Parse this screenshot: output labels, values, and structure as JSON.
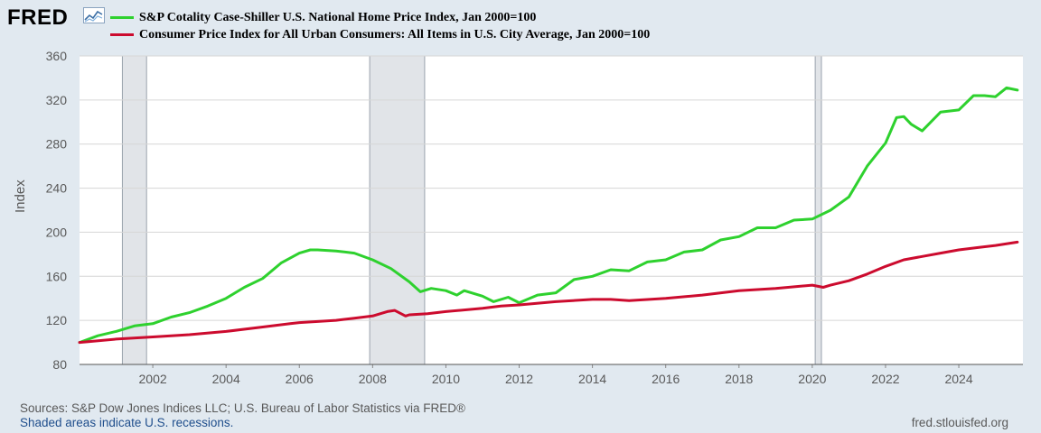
{
  "header": {
    "logo_text": "FRED",
    "logo_icon": "trend-line-icon"
  },
  "footer": {
    "sources": "Sources: S&P Dow Jones Indices LLC; U.S. Bureau of Labor Statistics via FRED®",
    "recession_note": "Shaded areas indicate U.S. recessions.",
    "site": "fred.stlouisfed.org"
  },
  "colors": {
    "background": "#e1e9f0",
    "plot_area": "#ffffff",
    "recession": "#e1e4e8",
    "home_price": "#2ed12e",
    "cpi": "#cc0b2e"
  },
  "chart_data": {
    "type": "line",
    "ylabel": "Index",
    "xlabel": "",
    "ylim": [
      80,
      360
    ],
    "xlim": [
      2000.0,
      2025.75
    ],
    "yticks": [
      80,
      120,
      160,
      200,
      240,
      280,
      320,
      360
    ],
    "xticks": [
      2002,
      2004,
      2006,
      2008,
      2010,
      2012,
      2014,
      2016,
      2018,
      2020,
      2022,
      2024
    ],
    "grid": true,
    "legend_position": "top-left",
    "recessions": [
      [
        2001.17,
        2001.83
      ],
      [
        2007.92,
        2009.42
      ],
      [
        2020.08,
        2020.25
      ]
    ],
    "series": [
      {
        "name": "S&P Cotality Case-Shiller U.S. National Home Price Index, Jan 2000=100",
        "color": "#2ed12e",
        "x": [
          2000.0,
          2000.5,
          2001.0,
          2001.5,
          2002.0,
          2002.5,
          2003.0,
          2003.5,
          2004.0,
          2004.5,
          2005.0,
          2005.5,
          2006.0,
          2006.3,
          2006.5,
          2007.0,
          2007.5,
          2008.0,
          2008.5,
          2009.0,
          2009.3,
          2009.6,
          2010.0,
          2010.3,
          2010.5,
          2011.0,
          2011.3,
          2011.7,
          2012.0,
          2012.5,
          2013.0,
          2013.5,
          2014.0,
          2014.5,
          2015.0,
          2015.5,
          2016.0,
          2016.5,
          2017.0,
          2017.5,
          2018.0,
          2018.5,
          2019.0,
          2019.5,
          2020.0,
          2020.5,
          2021.0,
          2021.5,
          2022.0,
          2022.3,
          2022.5,
          2022.7,
          2023.0,
          2023.5,
          2024.0,
          2024.4,
          2024.7,
          2025.0,
          2025.3,
          2025.6
        ],
        "values": [
          100,
          106,
          110,
          115,
          117,
          123,
          127,
          133,
          140,
          150,
          158,
          172,
          181,
          184,
          184,
          183,
          181,
          175,
          167,
          155,
          146,
          149,
          147,
          143,
          147,
          142,
          137,
          141,
          136,
          143,
          145,
          157,
          160,
          166,
          165,
          173,
          175,
          182,
          184,
          193,
          196,
          204,
          204,
          211,
          212,
          220,
          232,
          260,
          281,
          304,
          305,
          298,
          292,
          309,
          311,
          324,
          324,
          323,
          331,
          329
        ]
      },
      {
        "name": "Consumer Price Index for All Urban Consumers: All Items in U.S. City Average, Jan 2000=100",
        "color": "#cc0b2e",
        "x": [
          2000.0,
          2001.0,
          2002.0,
          2003.0,
          2004.0,
          2005.0,
          2005.75,
          2006.0,
          2006.5,
          2007.0,
          2007.5,
          2008.0,
          2008.4,
          2008.6,
          2008.9,
          2009.0,
          2009.5,
          2010.0,
          2011.0,
          2011.5,
          2012.0,
          2013.0,
          2014.0,
          2014.5,
          2015.0,
          2016.0,
          2017.0,
          2018.0,
          2019.0,
          2020.0,
          2020.3,
          2020.5,
          2021.0,
          2021.5,
          2022.0,
          2022.5,
          2023.0,
          2023.5,
          2024.0,
          2024.5,
          2025.0,
          2025.6
        ],
        "values": [
          100,
          103,
          105,
          107,
          110,
          114,
          117,
          118,
          119,
          120,
          122,
          124,
          128,
          129,
          124,
          125,
          126,
          128,
          131,
          133,
          134,
          137,
          139,
          139,
          138,
          140,
          143,
          147,
          149,
          152,
          150,
          152,
          156,
          162,
          169,
          175,
          178,
          181,
          184,
          186,
          188,
          191
        ]
      }
    ]
  }
}
